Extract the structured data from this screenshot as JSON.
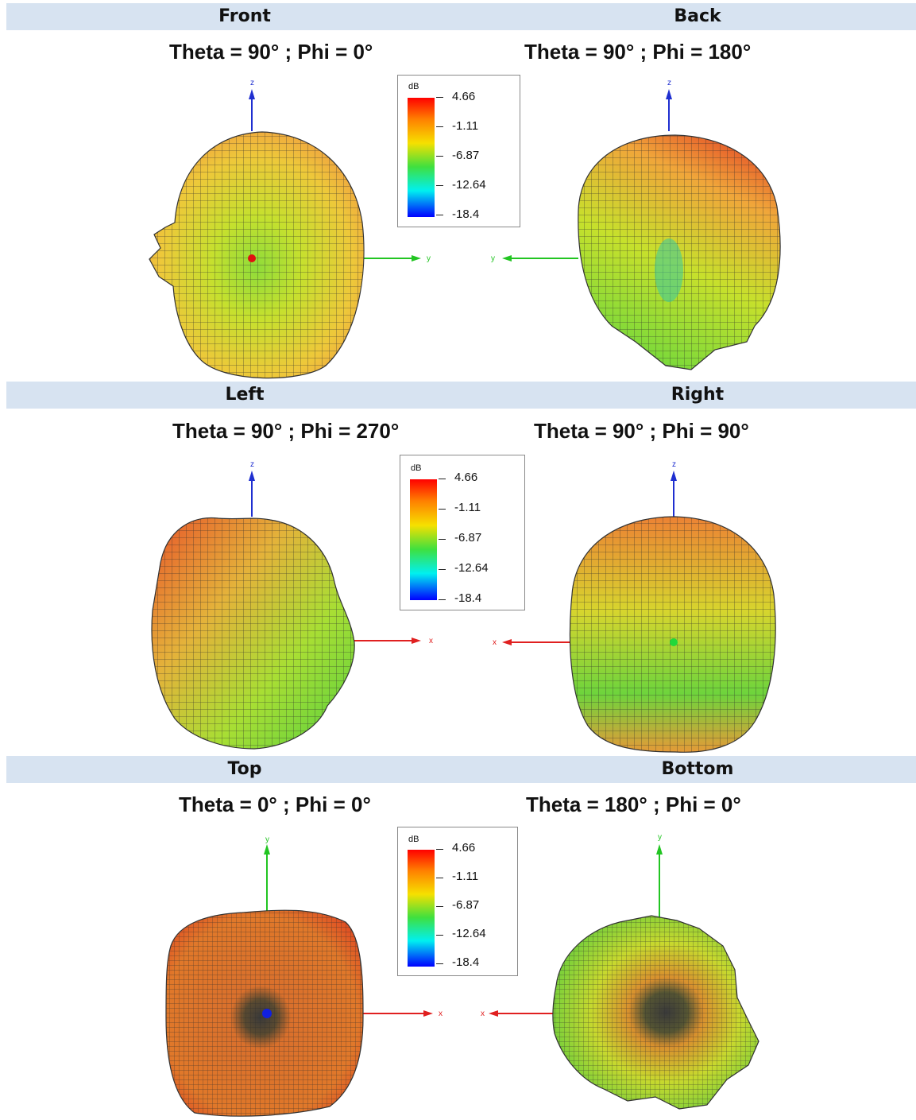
{
  "sections": [
    {
      "left": "Front",
      "right": "Back"
    },
    {
      "left": "Left",
      "right": "Right"
    },
    {
      "left": "Top",
      "right": "Bottom"
    }
  ],
  "angles": [
    {
      "left": "Theta = 90° ; Phi = 0°",
      "right": "Theta = 90° ; Phi = 180°"
    },
    {
      "left": "Theta = 90° ; Phi = 270°",
      "right": "Theta = 90° ; Phi = 90°"
    },
    {
      "left": "Theta = 0° ; Phi = 0°",
      "right": "Theta = 180° ; Phi = 0°"
    }
  ],
  "legend": {
    "unit": "dB",
    "values": [
      "4.66",
      "-1.11",
      "-6.87",
      "-12.64",
      "-18.4"
    ]
  },
  "axes": [
    {
      "left_up": "z",
      "left_side": "y",
      "right_up": "z",
      "right_side": "y"
    },
    {
      "left_up": "z",
      "left_side": "x",
      "right_up": "z",
      "right_side": "x"
    },
    {
      "left_up": "y",
      "left_side": "x",
      "right_up": "y",
      "right_side": "x"
    }
  ],
  "colors": {
    "header_band": "#d7e3f1",
    "axis_z": "#1f2fd0",
    "axis_y": "#22c522",
    "axis_x": "#e02020",
    "mesh": "#2b2b2b"
  }
}
